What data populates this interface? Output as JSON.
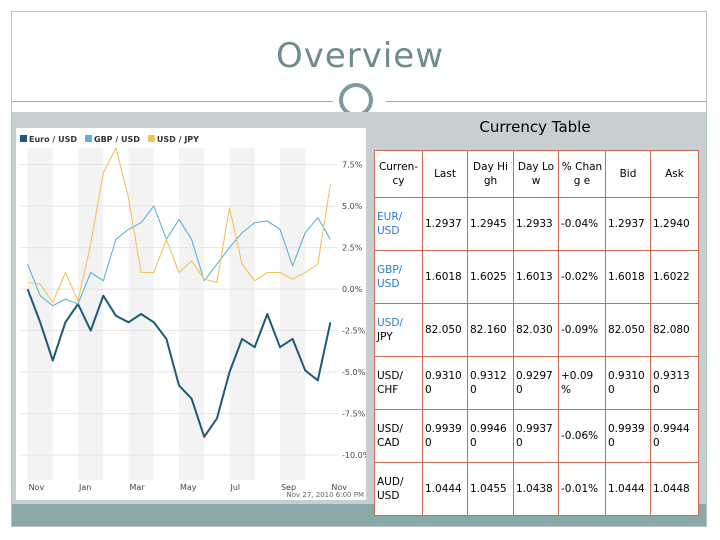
{
  "slide": {
    "title": "Overview"
  },
  "table": {
    "title": "Currency Table",
    "headers": [
      "Curren- cy",
      "Last",
      "Day High",
      "Day Low",
      "% Chang e",
      "Bid",
      "Ask"
    ],
    "rows": [
      {
        "pair": "EUR/ USD",
        "pair_a": "EUR/",
        "pair_b": "USD",
        "a_blue": true,
        "b_blue": true,
        "last": "1.2937",
        "high": "1.2945",
        "low": "1.2933",
        "change": "-0.04%",
        "bid": "1.2937",
        "ask": "1.2940"
      },
      {
        "pair": "GBP/ USD",
        "pair_a": "GBP/",
        "pair_b": "USD",
        "a_blue": true,
        "b_blue": true,
        "last": "1.6018",
        "high": "1.6025",
        "low": "1.6013",
        "change": "-0.02%",
        "bid": "1.6018",
        "ask": "1.6022"
      },
      {
        "pair": "USD/ JPY",
        "pair_a": "USD/",
        "pair_b": "JPY",
        "a_blue": true,
        "b_blue": false,
        "last": "82.050",
        "high": "82.160",
        "low": "82.030",
        "change": "-0.09%",
        "bid": "82.050",
        "ask": "82.080"
      },
      {
        "pair": "USD/ CHF",
        "pair_a": "USD/",
        "pair_b": "CHF",
        "a_blue": false,
        "b_blue": false,
        "last": "0.9310 0",
        "high": "0.9312 0",
        "low": "0.9297 0",
        "change": "+0.09 %",
        "bid": "0.9310 0",
        "ask": "0.9313 0"
      },
      {
        "pair": "USD/ CAD",
        "pair_a": "USD/",
        "pair_b": "CAD",
        "a_blue": false,
        "b_blue": false,
        "last": "0.9939 0",
        "high": "0.9946 0",
        "low": "0.9937 0",
        "change": "-0.06%",
        "bid": "0.9939 0",
        "ask": "0.9944 0"
      },
      {
        "pair": "AUD/ USD",
        "pair_a": "AUD/",
        "pair_b": "USD",
        "a_blue": false,
        "b_blue": false,
        "last": "1.0444",
        "high": "1.0455",
        "low": "1.0438",
        "change": "-0.01%",
        "bid": "1.0444",
        "ask": "1.0448"
      }
    ]
  },
  "chart_data": {
    "type": "line",
    "legend_position": "top-left",
    "grid": true,
    "ylim": [
      -11.5,
      8.5
    ],
    "y_ticks": [
      7.5,
      5.0,
      2.5,
      0.0,
      -2.5,
      -5.0,
      -7.5,
      -10.0
    ],
    "y_tick_labels": [
      "7.5%",
      "5.0%",
      "2.5%",
      "0.0%",
      "-2.5%",
      "-5.0%",
      "-7.5%",
      "-10.0%"
    ],
    "x_ticks": [
      0,
      2,
      4,
      6,
      8,
      10,
      12
    ],
    "x_tick_labels": [
      "Nov",
      "Jan",
      "Mar",
      "May",
      "Jul",
      "Sep",
      "Nov"
    ],
    "timestamp": "Nov 27, 2010 6:00 PM",
    "x": [
      0,
      0.5,
      1,
      1.5,
      2,
      2.5,
      3,
      3.5,
      4,
      4.5,
      5,
      5.5,
      6,
      6.5,
      7,
      7.5,
      8,
      8.5,
      9,
      9.5,
      10,
      10.5,
      11,
      11.5,
      12
    ],
    "series": [
      {
        "name": "Euro / USD",
        "color": "#1c5a7a",
        "values": [
          0.0,
          -2.0,
          -4.3,
          -2.0,
          -0.9,
          -2.5,
          -0.4,
          -1.6,
          -2.0,
          -1.5,
          -2.0,
          -3.0,
          -5.8,
          -6.6,
          -8.9,
          -7.8,
          -5.0,
          -3.0,
          -3.5,
          -1.5,
          -3.5,
          -3.0,
          -4.9,
          -5.5,
          -2.0
        ]
      },
      {
        "name": "GBP / USD",
        "color": "#5ab4d6",
        "values": [
          1.5,
          -0.4,
          -1.0,
          -0.6,
          -0.9,
          1.0,
          0.5,
          3.0,
          3.6,
          4.0,
          5.0,
          3.0,
          4.2,
          3.0,
          0.5,
          1.5,
          2.5,
          3.4,
          4.0,
          4.1,
          3.6,
          1.4,
          3.4,
          4.3,
          3.0
        ]
      },
      {
        "name": "USD / JPY",
        "color": "#f2c25a",
        "values": [
          0.4,
          0.3,
          -0.8,
          1.0,
          -0.7,
          2.7,
          7.0,
          8.5,
          5.5,
          1.0,
          1.0,
          3.0,
          1.0,
          1.7,
          0.6,
          0.4,
          4.9,
          1.5,
          0.5,
          1.0,
          1.0,
          0.6,
          1.0,
          1.5,
          6.3
        ]
      }
    ]
  }
}
